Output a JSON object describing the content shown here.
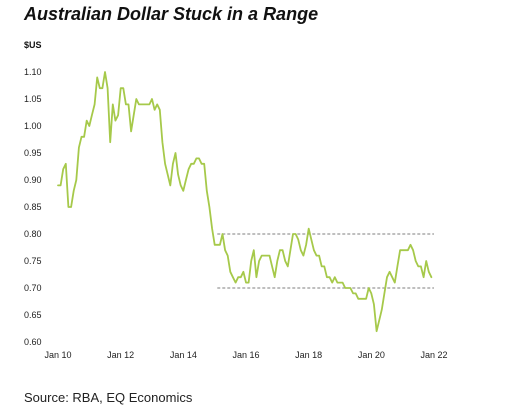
{
  "title": "Australian Dollar Stuck in a Range",
  "source": "Source: RBA, EQ Economics",
  "colors": {
    "series": "#a6c94a",
    "reference_lines": "#555555",
    "text": "#222222"
  },
  "chart_data": {
    "type": "line",
    "title": "Australian Dollar Stuck in a Range",
    "ylabel": "$US",
    "xlabel": "",
    "xlim": [
      "Jan 10",
      "Jan 22"
    ],
    "ylim": [
      0.6,
      1.1
    ],
    "x_ticks": [
      "Jan 10",
      "Jan 12",
      "Jan 14",
      "Jan 16",
      "Jan 18",
      "Jan 20",
      "Jan 22"
    ],
    "y_ticks": [
      "0.60",
      "0.65",
      "0.70",
      "0.75",
      "0.80",
      "0.85",
      "0.90",
      "0.95",
      "1.00",
      "1.05",
      "1.10"
    ],
    "grid": false,
    "legend": "none",
    "reference_lines": [
      {
        "y": 0.8,
        "style": "dashed",
        "from": "2015-02",
        "to": "2022-01"
      },
      {
        "y": 0.7,
        "style": "dashed",
        "from": "2015-02",
        "to": "2022-01"
      }
    ],
    "series": [
      {
        "x": [
          "2010-01",
          "2010-02",
          "2010-03",
          "2010-04",
          "2010-05",
          "2010-06",
          "2010-07",
          "2010-08",
          "2010-09",
          "2010-10",
          "2010-11",
          "2010-12",
          "2011-01",
          "2011-02",
          "2011-03",
          "2011-04",
          "2011-05",
          "2011-06",
          "2011-07",
          "2011-08",
          "2011-09",
          "2011-10",
          "2011-11",
          "2011-12",
          "2012-01",
          "2012-02",
          "2012-03",
          "2012-04",
          "2012-05",
          "2012-06",
          "2012-07",
          "2012-08",
          "2012-09",
          "2012-10",
          "2012-11",
          "2012-12",
          "2013-01",
          "2013-02",
          "2013-03",
          "2013-04",
          "2013-05",
          "2013-06",
          "2013-07",
          "2013-08",
          "2013-09",
          "2013-10",
          "2013-11",
          "2013-12",
          "2014-01",
          "2014-02",
          "2014-03",
          "2014-04",
          "2014-05",
          "2014-06",
          "2014-07",
          "2014-08",
          "2014-09",
          "2014-10",
          "2014-11",
          "2014-12",
          "2015-01",
          "2015-02",
          "2015-03",
          "2015-04",
          "2015-05",
          "2015-06",
          "2015-07",
          "2015-08",
          "2015-09",
          "2015-10",
          "2015-11",
          "2015-12",
          "2016-01",
          "2016-02",
          "2016-03",
          "2016-04",
          "2016-05",
          "2016-06",
          "2016-07",
          "2016-08",
          "2016-09",
          "2016-10",
          "2016-11",
          "2016-12",
          "2017-01",
          "2017-02",
          "2017-03",
          "2017-04",
          "2017-05",
          "2017-06",
          "2017-07",
          "2017-08",
          "2017-09",
          "2017-10",
          "2017-11",
          "2017-12",
          "2018-01",
          "2018-02",
          "2018-03",
          "2018-04",
          "2018-05",
          "2018-06",
          "2018-07",
          "2018-08",
          "2018-09",
          "2018-10",
          "2018-11",
          "2018-12",
          "2019-01",
          "2019-02",
          "2019-03",
          "2019-04",
          "2019-05",
          "2019-06",
          "2019-07",
          "2019-08",
          "2019-09",
          "2019-10",
          "2019-11",
          "2019-12",
          "2020-01",
          "2020-02",
          "2020-03",
          "2020-04",
          "2020-05",
          "2020-06",
          "2020-07",
          "2020-08",
          "2020-09",
          "2020-10",
          "2020-11",
          "2020-12",
          "2021-01",
          "2021-02",
          "2021-03",
          "2021-04",
          "2021-05",
          "2021-06",
          "2021-07",
          "2021-08",
          "2021-09",
          "2021-10",
          "2021-11",
          "2021-12"
        ],
        "values": [
          0.89,
          0.89,
          0.92,
          0.93,
          0.85,
          0.85,
          0.88,
          0.9,
          0.96,
          0.98,
          0.98,
          1.01,
          1.0,
          1.02,
          1.04,
          1.09,
          1.07,
          1.07,
          1.1,
          1.07,
          0.97,
          1.04,
          1.01,
          1.02,
          1.07,
          1.07,
          1.04,
          1.04,
          0.99,
          1.02,
          1.05,
          1.04,
          1.04,
          1.04,
          1.04,
          1.04,
          1.05,
          1.03,
          1.04,
          1.03,
          0.97,
          0.93,
          0.91,
          0.89,
          0.93,
          0.95,
          0.91,
          0.89,
          0.88,
          0.9,
          0.92,
          0.93,
          0.93,
          0.94,
          0.94,
          0.93,
          0.93,
          0.88,
          0.85,
          0.81,
          0.78,
          0.78,
          0.78,
          0.8,
          0.77,
          0.76,
          0.73,
          0.72,
          0.71,
          0.72,
          0.72,
          0.73,
          0.71,
          0.71,
          0.75,
          0.77,
          0.72,
          0.75,
          0.76,
          0.76,
          0.76,
          0.76,
          0.74,
          0.72,
          0.75,
          0.77,
          0.77,
          0.75,
          0.74,
          0.77,
          0.8,
          0.8,
          0.79,
          0.77,
          0.76,
          0.78,
          0.81,
          0.79,
          0.77,
          0.76,
          0.76,
          0.74,
          0.74,
          0.72,
          0.72,
          0.71,
          0.72,
          0.71,
          0.71,
          0.71,
          0.7,
          0.7,
          0.7,
          0.69,
          0.69,
          0.68,
          0.68,
          0.68,
          0.68,
          0.7,
          0.69,
          0.67,
          0.62,
          0.64,
          0.66,
          0.69,
          0.72,
          0.73,
          0.72,
          0.71,
          0.74,
          0.77,
          0.77,
          0.77,
          0.77,
          0.78,
          0.77,
          0.75,
          0.74,
          0.74,
          0.72,
          0.75,
          0.73,
          0.72
        ]
      }
    ]
  }
}
